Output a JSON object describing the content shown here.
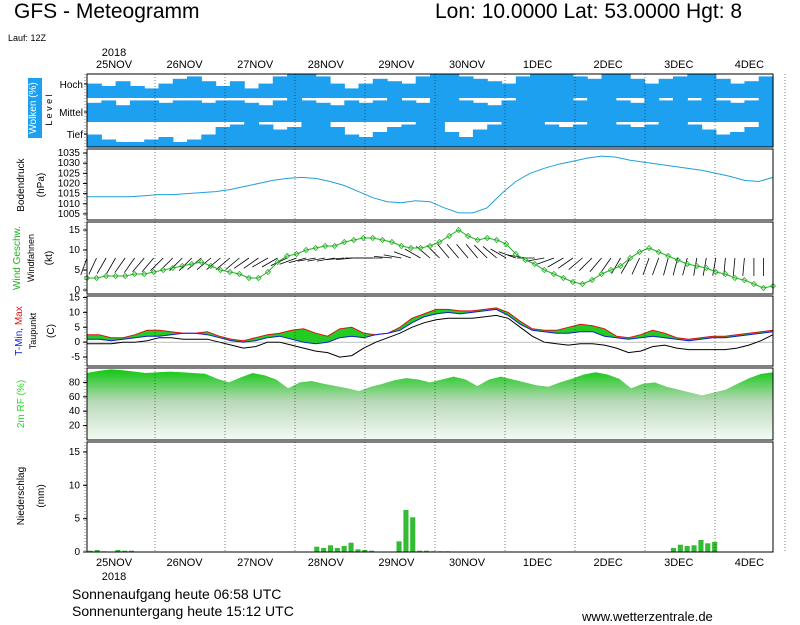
{
  "header": {
    "title": "GFS - Meteogramm",
    "coords": "Lon: 10.0000  Lat: 53.0000  Hgt: 8",
    "run": "Lauf: 12Z"
  },
  "footer": {
    "sunrise": "Sonnenaufgang heute 06:58 UTC",
    "sunset": "Sonnenuntergang heute 15:12 UTC",
    "website": "www.wetterzentrale.de"
  },
  "colors": {
    "cloud": "#1ea0f0",
    "pressure": "#20a0d8",
    "wind": "#22b022",
    "tmax": "#e01010",
    "tmin": "#1020d0",
    "temp_fill": "#22cc22",
    "rh": "#22dd22",
    "precip": "#33bb33"
  },
  "chart_data": [
    {
      "type": "heatmap",
      "panel": "clouds",
      "ylabel": "Wolken (%)",
      "ylabel2": "L e v e l",
      "levels": [
        "Hoch",
        "Mittel",
        "Tief"
      ],
      "x_labels": [
        "25NOV",
        "26NOV",
        "27NOV",
        "28NOV",
        "29NOV",
        "30NOV",
        "1DEC",
        "2DEC",
        "3DEC",
        "4DEC"
      ],
      "year_label": "2018",
      "cover": {
        "Hoch": [
          0.6,
          0.5,
          0.7,
          0.5,
          0.4,
          0.6,
          0.8,
          0.9,
          0.7,
          0.5,
          0.7,
          0.4,
          0.6,
          0.9,
          1.0,
          1.0,
          0.9,
          0.6,
          0.4,
          0.6,
          0.8,
          0.7,
          0.6,
          0.9,
          1.0,
          1.0,
          0.9,
          0.8,
          0.7,
          0.6,
          0.9,
          1.0,
          1.0,
          1.0,
          0.9,
          0.8,
          1.0,
          1.0,
          0.8,
          0.6,
          0.8,
          0.9,
          1.0,
          1.0,
          0.8,
          0.6,
          0.7,
          0.9
        ],
        "Mittel": [
          0.8,
          0.9,
          0.7,
          0.9,
          0.9,
          0.8,
          0.9,
          0.9,
          0.8,
          0.9,
          0.9,
          0.8,
          0.7,
          0.9,
          1.0,
          0.9,
          0.8,
          0.7,
          0.9,
          0.8,
          0.9,
          1.0,
          0.9,
          0.8,
          1.0,
          1.0,
          0.9,
          0.8,
          0.7,
          0.9,
          1.0,
          1.0,
          1.0,
          1.0,
          0.9,
          1.0,
          1.0,
          0.9,
          0.8,
          1.0,
          0.9,
          1.0,
          0.9,
          1.0,
          0.9,
          0.8,
          0.9,
          1.0
        ],
        "Tief": [
          0.5,
          0.3,
          0.2,
          0.2,
          0.3,
          0.4,
          0.2,
          0.3,
          0.5,
          0.8,
          0.9,
          1.0,
          0.9,
          0.7,
          0.8,
          1.0,
          1.0,
          0.8,
          0.5,
          0.4,
          0.6,
          0.8,
          0.9,
          1.0,
          1.0,
          0.6,
          0.4,
          0.7,
          0.9,
          1.0,
          1.0,
          1.0,
          0.9,
          0.8,
          0.9,
          1.0,
          1.0,
          0.9,
          0.8,
          0.9,
          1.0,
          1.0,
          0.9,
          0.7,
          0.5,
          0.6,
          0.8,
          1.0
        ]
      }
    },
    {
      "type": "line",
      "panel": "pressure",
      "ylabel": "Bodendruck",
      "unit": "(hPa)",
      "yticks": [
        1005,
        1010,
        1015,
        1020,
        1025,
        1030,
        1035
      ],
      "ylim": [
        1002,
        1037
      ],
      "values": [
        1013.5,
        1013.5,
        1013.5,
        1013.5,
        1014,
        1014.5,
        1014.5,
        1015,
        1015.5,
        1016,
        1017,
        1018.5,
        1020,
        1021.5,
        1022.5,
        1023,
        1022.5,
        1021,
        1019,
        1016,
        1013,
        1011,
        1010.5,
        1011.5,
        1011,
        1008,
        1005.5,
        1005.5,
        1008,
        1015,
        1021,
        1025,
        1027.5,
        1029.5,
        1031,
        1032.5,
        1033.5,
        1033,
        1031.5,
        1030.5,
        1029.5,
        1028.5,
        1027.5,
        1026.5,
        1025,
        1023.5,
        1021.5,
        1021,
        1023
      ]
    },
    {
      "type": "line",
      "panel": "wind",
      "ylabel": "Wind Geschw.",
      "ylabel2": "Windfahnen",
      "unit": "(kt)",
      "yticks": [
        0,
        5,
        10,
        15
      ],
      "ylim": [
        -1,
        17
      ],
      "speed": [
        3,
        3,
        3.5,
        3.5,
        3.5,
        4,
        4,
        4.5,
        5,
        5.5,
        6,
        6.5,
        7,
        6,
        5,
        4.5,
        4,
        3,
        3,
        4.5,
        7,
        8.5,
        9,
        10,
        10.5,
        11,
        11,
        12,
        12.5,
        13,
        13,
        12.5,
        12,
        11,
        10.5,
        10.5,
        11,
        12,
        13.5,
        15,
        13.5,
        12.5,
        13,
        12.5,
        11.5,
        9,
        7.5,
        6.5,
        5,
        4,
        3,
        2,
        1.5,
        2.5,
        4,
        5,
        6,
        8,
        9.5,
        10.5,
        9.5,
        8.5,
        7.5,
        6.5,
        6,
        5.5,
        4.5,
        4,
        3,
        2.5,
        1.5,
        0.5,
        1
      ],
      "barb_dirs_deg": [
        200,
        205,
        210,
        210,
        215,
        215,
        220,
        220,
        225,
        225,
        225,
        225,
        230,
        230,
        230,
        230,
        230,
        235,
        235,
        240,
        240,
        245,
        250,
        255,
        260,
        260,
        260,
        265,
        265,
        270,
        270,
        270,
        275,
        280,
        290,
        300,
        310,
        315,
        320,
        320,
        320,
        320,
        315,
        310,
        300,
        290,
        280,
        270,
        260,
        250,
        240,
        235,
        230,
        225,
        220,
        215,
        210,
        210,
        205,
        200,
        200,
        195,
        195,
        195,
        190,
        190,
        190,
        185,
        185,
        185,
        180,
        180,
        180
      ]
    },
    {
      "type": "line",
      "panel": "temperature",
      "ylabel": "T-Min, Max",
      "ylabel2": "Taupunkt",
      "unit": "(C)",
      "yticks": [
        -5,
        0,
        5,
        10,
        15
      ],
      "ylim": [
        -8,
        15.5
      ],
      "legend": [
        "T-Min",
        "Max",
        "Taupunkt"
      ],
      "tmin": [
        1,
        1,
        0.5,
        1,
        1.5,
        2,
        2,
        2.5,
        3,
        3,
        2.5,
        1.5,
        0.5,
        0,
        0.5,
        1.5,
        2,
        1,
        0,
        -0.5,
        0,
        1.5,
        2,
        1.5,
        2.5,
        3,
        4,
        6.5,
        8.5,
        9.5,
        10,
        9.5,
        10,
        10.5,
        11,
        9,
        6,
        4,
        3.5,
        3,
        3,
        3.5,
        3.5,
        2,
        1.5,
        1,
        1.5,
        2,
        1.5,
        1,
        0.5,
        1,
        1.5,
        1.5,
        2,
        2.5,
        3,
        3.5
      ],
      "tmax": [
        2.5,
        2.5,
        1.5,
        1.5,
        2.5,
        4,
        4,
        3.5,
        3,
        3,
        3.5,
        2,
        1,
        0.5,
        1.5,
        2.5,
        3,
        4,
        4.5,
        3,
        2,
        4.5,
        5,
        3,
        2.5,
        3,
        5,
        8,
        9.5,
        11,
        11,
        10.5,
        10.5,
        11,
        11.5,
        10,
        7,
        4.5,
        4,
        4,
        5,
        6,
        5.5,
        4.5,
        2,
        1.5,
        2.5,
        4,
        3,
        1.5,
        1,
        1.5,
        2,
        2,
        2.5,
        3,
        3.5,
        4
      ],
      "dewpoint": [
        -0.5,
        -0.5,
        -0.5,
        0,
        0,
        0.5,
        1.5,
        1.5,
        1,
        1,
        1,
        0,
        -1,
        -2,
        -1.5,
        0,
        0,
        -1,
        -2,
        -3,
        -3.5,
        -5,
        -4.5,
        -2,
        0,
        1.5,
        3,
        5,
        6.5,
        7.5,
        8,
        8,
        8,
        8.5,
        9,
        8,
        5,
        2,
        0,
        -0.5,
        -1,
        -0.5,
        -0.5,
        -1,
        -2,
        -3.5,
        -3,
        -1.5,
        -1,
        -2,
        -2.5,
        -2.5,
        -2.5,
        -2.5,
        -2,
        -1,
        0.5,
        2.5
      ]
    },
    {
      "type": "area",
      "panel": "humidity",
      "ylabel": "2m RF (%)",
      "yticks": [
        20,
        40,
        60,
        80
      ],
      "ylim": [
        0,
        100
      ],
      "values": [
        93,
        96,
        98,
        97,
        95,
        93,
        94,
        95,
        94,
        93,
        92,
        85,
        80,
        87,
        93,
        90,
        84,
        72,
        80,
        82,
        78,
        75,
        72,
        68,
        74,
        78,
        83,
        86,
        84,
        80,
        84,
        88,
        84,
        75,
        84,
        88,
        84,
        80,
        76,
        74,
        80,
        85,
        91,
        94,
        91,
        85,
        72,
        78,
        80,
        74,
        70,
        66,
        62,
        66,
        70,
        78,
        86,
        92,
        94
      ]
    },
    {
      "type": "bar",
      "panel": "precipitation",
      "ylabel": "Niederschlag",
      "unit": "(mm)",
      "yticks": [
        0,
        5,
        10,
        15
      ],
      "ylim": [
        0,
        16.5
      ],
      "x_labels": [
        "25NOV",
        "26NOV",
        "27NOV",
        "28NOV",
        "29NOV",
        "30NOV",
        "1DEC",
        "2DEC",
        "3DEC",
        "4DEC"
      ],
      "year_label": "2018",
      "bars": [
        [
          0,
          0.2
        ],
        [
          1,
          0.3
        ],
        [
          2,
          0.1
        ],
        [
          4,
          0.3
        ],
        [
          5,
          0.2
        ],
        [
          6,
          0.2
        ],
        [
          33,
          0.8
        ],
        [
          34,
          0.6
        ],
        [
          35,
          1.0
        ],
        [
          36,
          0.6
        ],
        [
          37,
          0.9
        ],
        [
          38,
          1.4
        ],
        [
          39,
          0.4
        ],
        [
          40,
          0.3
        ],
        [
          41,
          0.2
        ],
        [
          45,
          1.6
        ],
        [
          46,
          6.3
        ],
        [
          47,
          5.2
        ],
        [
          48,
          0.2
        ],
        [
          49,
          0.2
        ],
        [
          50,
          0.1
        ],
        [
          51,
          0.1
        ],
        [
          52,
          0.1
        ],
        [
          85,
          0.6
        ],
        [
          86,
          1.1
        ],
        [
          87,
          0.9
        ],
        [
          88,
          1.0
        ],
        [
          89,
          1.8
        ],
        [
          90,
          1.3
        ],
        [
          91,
          1.5
        ]
      ]
    }
  ]
}
